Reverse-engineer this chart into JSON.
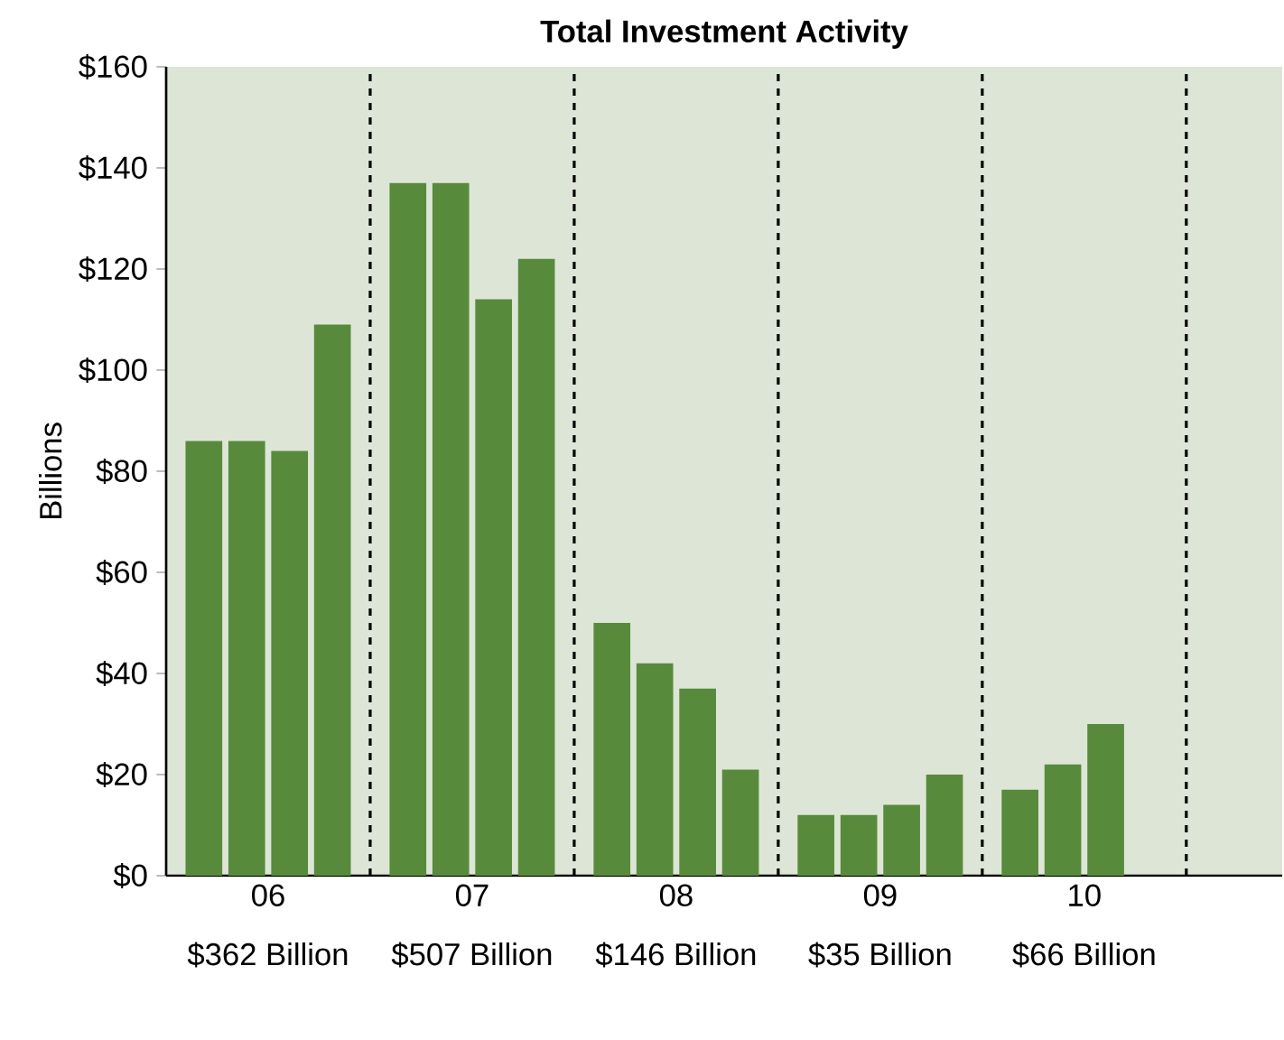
{
  "chart_data": {
    "type": "bar",
    "title": "Total Investment Activity",
    "ylabel": "Billions",
    "categories": [
      "06",
      "07",
      "08",
      "09",
      "10"
    ],
    "series": [
      {
        "color": "#588a3c",
        "values": [
          86,
          137,
          50,
          12,
          17
        ]
      },
      {
        "color": "#588a3c",
        "values": [
          86,
          137,
          42,
          12,
          22
        ]
      },
      {
        "color": "#588a3c",
        "values": [
          84,
          114,
          37,
          14,
          30
        ]
      },
      {
        "color": "#588a3c",
        "values": [
          109,
          122,
          21,
          20,
          null
        ]
      }
    ],
    "ylim": [
      0,
      160
    ],
    "yticks": [
      {
        "value": 0,
        "label": "$0"
      },
      {
        "value": 20,
        "label": "$20"
      },
      {
        "value": 40,
        "label": "$40"
      },
      {
        "value": 60,
        "label": "$60"
      },
      {
        "value": 80,
        "label": "$80"
      },
      {
        "value": 100,
        "label": "$100"
      },
      {
        "value": 120,
        "label": "$120"
      },
      {
        "value": 140,
        "label": "$140"
      },
      {
        "value": 160,
        "label": "$160"
      }
    ],
    "annotations": [
      "$362 Billion",
      "$507 Billion",
      "$146 Billion",
      "$35 Billion",
      "$66 Billion"
    ],
    "grid": false
  }
}
